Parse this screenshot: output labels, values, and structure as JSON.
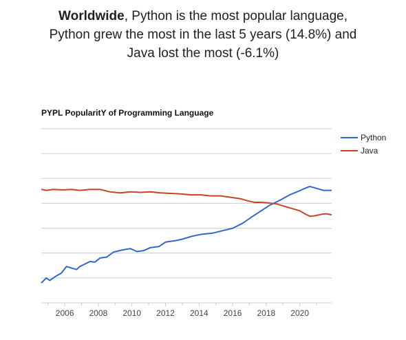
{
  "headline": {
    "bold": "Worldwide",
    "line1_rest": ", Python is the most popular language,",
    "line2": "Python grew the most in the last 5 years (14.8%) and",
    "line3": "Java lost the most (-6.1%)"
  },
  "colors": {
    "python": "#3366cc",
    "java": "#cc4125",
    "grid": "#cccccc",
    "axis_text": "#444444"
  },
  "chart_data": {
    "type": "line",
    "title": "PYPL PopularitY of Programming Language",
    "xlabel": "",
    "ylabel": "",
    "x_ticks": [
      "2006",
      "2008",
      "2010",
      "2012",
      "2014",
      "2016",
      "2018",
      "2020"
    ],
    "xlim": [
      2004.6,
      2021.9
    ],
    "ylim": [
      0,
      35
    ],
    "grid": true,
    "legend_position": "right",
    "series": [
      {
        "name": "Python",
        "color": "#3366cc",
        "points": [
          [
            2004.6,
            4.0
          ],
          [
            2004.9,
            5.0
          ],
          [
            2005.1,
            4.5
          ],
          [
            2005.4,
            5.2
          ],
          [
            2005.8,
            6.0
          ],
          [
            2006.1,
            7.3
          ],
          [
            2006.4,
            7.0
          ],
          [
            2006.7,
            6.7
          ],
          [
            2006.9,
            7.3
          ],
          [
            2007.2,
            7.8
          ],
          [
            2007.5,
            8.3
          ],
          [
            2007.8,
            8.2
          ],
          [
            2008.1,
            9.0
          ],
          [
            2008.5,
            9.2
          ],
          [
            2008.9,
            10.2
          ],
          [
            2009.4,
            10.6
          ],
          [
            2009.9,
            10.9
          ],
          [
            2010.3,
            10.3
          ],
          [
            2010.7,
            10.5
          ],
          [
            2011.1,
            11.1
          ],
          [
            2011.6,
            11.3
          ],
          [
            2012.0,
            12.2
          ],
          [
            2012.6,
            12.5
          ],
          [
            2013.0,
            12.8
          ],
          [
            2013.6,
            13.4
          ],
          [
            2014.2,
            13.8
          ],
          [
            2014.8,
            14.0
          ],
          [
            2015.4,
            14.5
          ],
          [
            2016.0,
            15.0
          ],
          [
            2016.6,
            16.0
          ],
          [
            2017.2,
            17.4
          ],
          [
            2017.7,
            18.5
          ],
          [
            2018.2,
            19.6
          ],
          [
            2018.8,
            20.6
          ],
          [
            2019.4,
            21.7
          ],
          [
            2019.9,
            22.4
          ],
          [
            2020.3,
            23.0
          ],
          [
            2020.6,
            23.4
          ],
          [
            2021.0,
            23.0
          ],
          [
            2021.4,
            22.6
          ],
          [
            2021.9,
            22.6
          ]
        ]
      },
      {
        "name": "Java",
        "color": "#cc4125",
        "points": [
          [
            2004.6,
            22.8
          ],
          [
            2004.9,
            22.6
          ],
          [
            2005.3,
            22.8
          ],
          [
            2005.9,
            22.7
          ],
          [
            2006.4,
            22.8
          ],
          [
            2006.9,
            22.6
          ],
          [
            2007.5,
            22.8
          ],
          [
            2008.1,
            22.8
          ],
          [
            2008.7,
            22.3
          ],
          [
            2009.3,
            22.1
          ],
          [
            2009.9,
            22.3
          ],
          [
            2010.5,
            22.2
          ],
          [
            2011.1,
            22.3
          ],
          [
            2011.7,
            22.1
          ],
          [
            2012.3,
            22.0
          ],
          [
            2012.9,
            21.9
          ],
          [
            2013.5,
            21.7
          ],
          [
            2014.1,
            21.7
          ],
          [
            2014.7,
            21.5
          ],
          [
            2015.3,
            21.5
          ],
          [
            2015.9,
            21.2
          ],
          [
            2016.5,
            20.9
          ],
          [
            2016.9,
            20.5
          ],
          [
            2017.3,
            20.2
          ],
          [
            2017.7,
            20.2
          ],
          [
            2018.1,
            20.1
          ],
          [
            2018.6,
            19.9
          ],
          [
            2019.1,
            19.4
          ],
          [
            2019.6,
            18.9
          ],
          [
            2020.0,
            18.5
          ],
          [
            2020.3,
            17.9
          ],
          [
            2020.6,
            17.4
          ],
          [
            2020.9,
            17.5
          ],
          [
            2021.3,
            17.8
          ],
          [
            2021.6,
            17.9
          ],
          [
            2021.9,
            17.7
          ]
        ]
      }
    ]
  }
}
